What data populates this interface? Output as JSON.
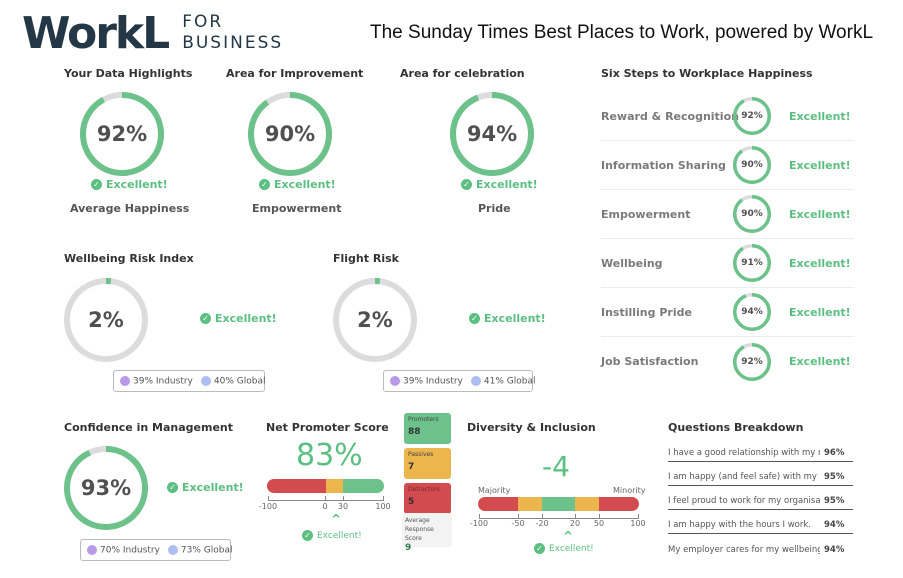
{
  "header": {
    "logo_main": "WorkL",
    "logo_sub_1": "FOR",
    "logo_sub_2": "BUSINESS",
    "title": "The Sunday Times Best Places to Work, powered by WorkL"
  },
  "colors": {
    "accent_green": "#5cbf82",
    "ring_green": "#6cc28a",
    "ring_track": "#dcdcdc",
    "red": "#d24b4f",
    "amber": "#ecb54d",
    "industry_dot": "#b89ae8",
    "global_dot": "#aebef0",
    "logo_navy": "#233746"
  },
  "highlights": [
    {
      "heading": "Your Data Highlights",
      "value": "92%",
      "percent": 92,
      "status": "Excellent!",
      "label": "Average Happiness"
    },
    {
      "heading": "Area for Improvement",
      "value": "90%",
      "percent": 90,
      "status": "Excellent!",
      "label": "Empowerment"
    },
    {
      "heading": "Area for celebration",
      "value": "94%",
      "percent": 94,
      "status": "Excellent!",
      "label": "Pride"
    }
  ],
  "six_steps": {
    "title": "Six Steps to Workplace Happiness",
    "items": [
      {
        "label": "Reward & Recognition",
        "value": "92%",
        "percent": 92,
        "status": "Excellent!"
      },
      {
        "label": "Information Sharing",
        "value": "90%",
        "percent": 90,
        "status": "Excellent!"
      },
      {
        "label": "Empowerment",
        "value": "90%",
        "percent": 90,
        "status": "Excellent!"
      },
      {
        "label": "Wellbeing",
        "value": "91%",
        "percent": 91,
        "status": "Excellent!"
      },
      {
        "label": "Instilling Pride",
        "value": "94%",
        "percent": 94,
        "status": "Excellent!"
      },
      {
        "label": "Job Satisfaction",
        "value": "92%",
        "percent": 92,
        "status": "Excellent!"
      }
    ]
  },
  "wellbeing_risk": {
    "title": "Wellbeing Risk Index",
    "value": "2%",
    "percent": 2,
    "status": "Excellent!",
    "industry": "39% Industry",
    "global": "40% Global"
  },
  "flight_risk": {
    "title": "Flight Risk",
    "value": "2%",
    "percent": 2,
    "status": "Excellent!",
    "industry": "39% Industry",
    "global": "41% Global"
  },
  "confidence": {
    "title": "Confidence in Management",
    "value": "93%",
    "percent": 93,
    "status": "Excellent!",
    "industry": "70% Industry",
    "global": "73% Global"
  },
  "nps": {
    "title": "Net Promoter Score",
    "score": "83%",
    "ticks": [
      "-100",
      "0",
      "30",
      "100"
    ],
    "status": "Excellent!",
    "promoters_label": "Promoters",
    "promoters_value": "88",
    "passives_label": "Passives",
    "passives_value": "7",
    "detractors_label": "Detractors",
    "detractors_value": "5",
    "avg_label_1": "Average",
    "avg_label_2": "Response Score",
    "avg_value": "9"
  },
  "diversity": {
    "title": "Diversity & Inclusion",
    "score": "-4",
    "left_label": "Majority",
    "right_label": "Minority",
    "ticks": [
      "-100",
      "-50",
      "-20",
      "20",
      "50",
      "100"
    ],
    "status": "Excellent!"
  },
  "questions": {
    "title": "Questions Breakdown",
    "items": [
      {
        "text": "I have a good relationship with my manager.",
        "value": "96%"
      },
      {
        "text": "I am happy (and feel safe) with my working environment.",
        "value": "95%"
      },
      {
        "text": "I feel proud to work for my organisation.",
        "value": "95%"
      },
      {
        "text": "I am happy with the hours I work.",
        "value": "94%"
      },
      {
        "text": "My employer cares for my wellbeing.",
        "value": "94%"
      }
    ]
  }
}
